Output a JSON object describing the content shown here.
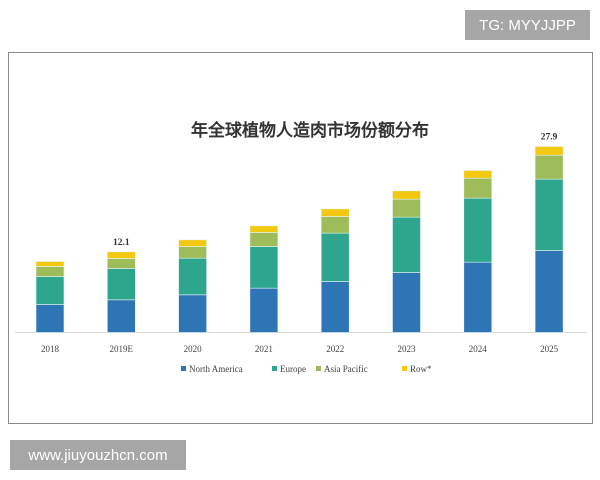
{
  "watermarks": {
    "top_right": "TG: MYYJJPP",
    "bottom_left": "www.jiuyouzhcn.com"
  },
  "chart_data": {
    "type": "bar",
    "stacked": true,
    "title": "年全球植物人造肉市场份额分布",
    "xlabel": "",
    "ylabel": "",
    "categories": [
      "2018",
      "2019E",
      "2020",
      "2021",
      "2022",
      "2023",
      "2024",
      "2025"
    ],
    "series": [
      {
        "name": "North America",
        "color": "#2e75b6",
        "values": [
          4.2,
          4.9,
          5.65,
          6.65,
          7.65,
          9.0,
          10.55,
          12.3
        ]
      },
      {
        "name": "Europe",
        "color": "#2ea58d",
        "values": [
          4.2,
          4.7,
          5.5,
          6.25,
          7.25,
          8.3,
          9.6,
          10.7
        ]
      },
      {
        "name": "Asia Pacific",
        "color": "#9fbc5a",
        "values": [
          1.5,
          1.5,
          1.75,
          2.1,
          2.5,
          2.7,
          3.0,
          3.6
        ]
      },
      {
        "name": "Row*",
        "color": "#f2c811",
        "values": [
          0.75,
          1.0,
          1.0,
          1.0,
          1.15,
          1.25,
          1.15,
          1.3
        ]
      }
    ],
    "data_labels": [
      {
        "category": "2019E",
        "text": "12.1"
      },
      {
        "category": "2025",
        "text": "27.9"
      }
    ],
    "ylim": [
      0,
      30
    ],
    "grid": false,
    "y_axis_visible": false,
    "legend_position": "bottom"
  }
}
